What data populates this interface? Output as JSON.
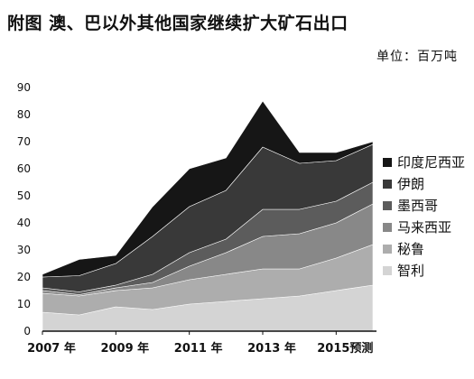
{
  "chart_data": {
    "type": "area",
    "stacked": true,
    "title": "附图  澳、巴以外其他国家继续扩大矿石出口",
    "unit": "单位：百万吨",
    "x": [
      2007,
      2008,
      2009,
      2010,
      2011,
      2012,
      2013,
      2014,
      2015,
      2016
    ],
    "xtick_labels": [
      "2007 年",
      "2009 年",
      "2011 年",
      "2013 年",
      "2015预测"
    ],
    "xtick_positions": [
      2007,
      2009,
      2011,
      2013,
      2015
    ],
    "yticks": [
      0,
      10,
      20,
      30,
      40,
      50,
      60,
      70,
      80,
      90
    ],
    "ylim": [
      0,
      90
    ],
    "grid": false,
    "legend_position": "right",
    "series": [
      {
        "name": "智利",
        "color": "#d4d4d4",
        "values": [
          7,
          6,
          9,
          8,
          10,
          11,
          12,
          13,
          15,
          17
        ]
      },
      {
        "name": "秘鲁",
        "color": "#adadad",
        "values": [
          7,
          7,
          6,
          8,
          9,
          10,
          11,
          10,
          12,
          15
        ]
      },
      {
        "name": "马来西亚",
        "color": "#888888",
        "values": [
          1,
          0.5,
          1,
          2,
          5,
          8,
          12,
          13,
          13,
          15
        ]
      },
      {
        "name": "墨西哥",
        "color": "#5c5c5c",
        "values": [
          1,
          1,
          1,
          3,
          5,
          5,
          10,
          9,
          8,
          8
        ]
      },
      {
        "name": "伊朗",
        "color": "#393939",
        "values": [
          4,
          6,
          8,
          14,
          17,
          18,
          23,
          17,
          15,
          14
        ]
      },
      {
        "name": "印度尼西亚",
        "color": "#161616",
        "values": [
          1,
          6,
          3,
          11,
          14,
          12,
          17,
          4,
          3,
          1
        ]
      }
    ]
  }
}
